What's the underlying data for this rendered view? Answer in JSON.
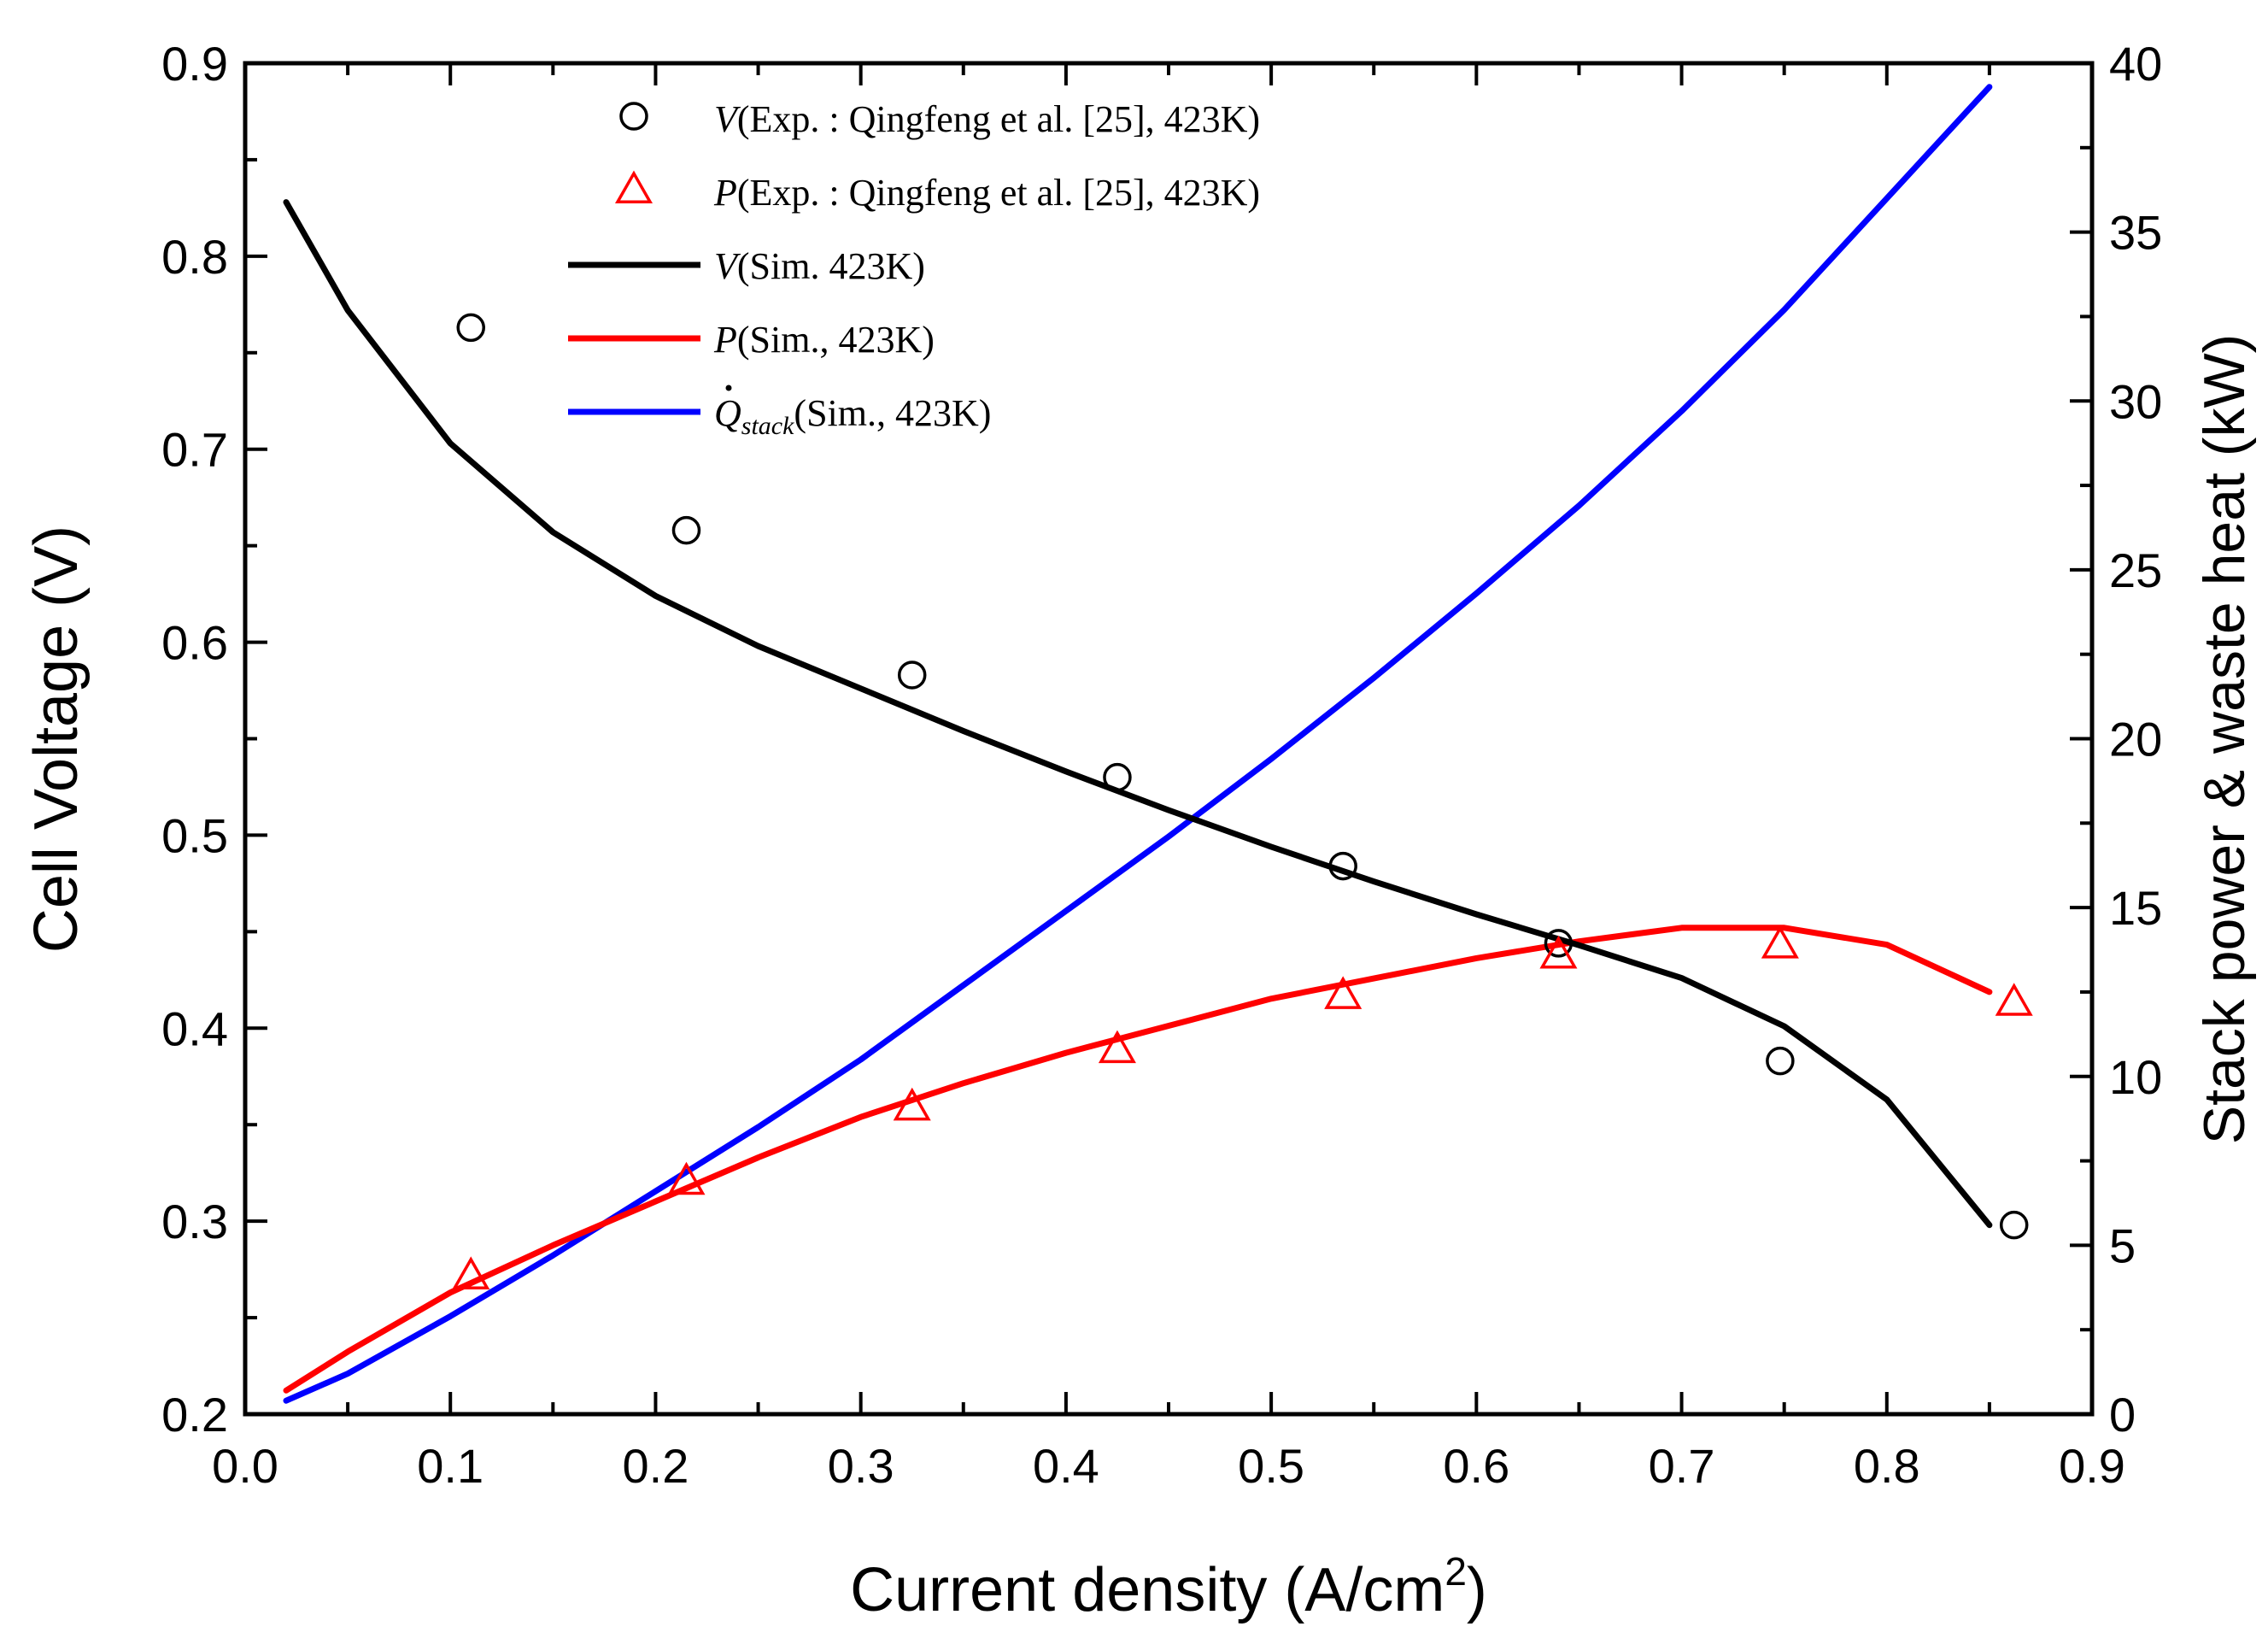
{
  "chart_data": {
    "type": "line",
    "xlabel": "Current density (A/cm",
    "xlabel_sup": "2",
    "xlabel_end": ")",
    "ylabel_left": "Cell Voltage (V)",
    "ylabel_right": "Stack power & waste heat (kW)",
    "xlim": [
      0.0,
      0.9
    ],
    "ylim_left": [
      0.2,
      0.9
    ],
    "ylim_right": [
      0,
      40
    ],
    "x_ticks": [
      "0.0",
      "0.1",
      "0.2",
      "0.3",
      "0.4",
      "0.5",
      "0.6",
      "0.7",
      "0.8",
      "0.9"
    ],
    "y_left_ticks": [
      "0.2",
      "0.3",
      "0.4",
      "0.5",
      "0.6",
      "0.7",
      "0.8",
      "0.9"
    ],
    "y_right_ticks": [
      "0",
      "5",
      "10",
      "15",
      "20",
      "25",
      "30",
      "35",
      "40"
    ],
    "legend_position": "top-center",
    "series": [
      {
        "name": "V_exp",
        "kind": "markers",
        "marker": "circle",
        "axis": "left",
        "color": "#000000",
        "legend_var": "V",
        "legend_label": "(Exp. : Qingfeng et al. [25], 423K)",
        "x": [
          0.11,
          0.215,
          0.325,
          0.425,
          0.535,
          0.64,
          0.748,
          0.862
        ],
        "y": [
          0.763,
          0.658,
          0.583,
          0.53,
          0.484,
          0.444,
          0.383,
          0.298
        ]
      },
      {
        "name": "P_exp",
        "kind": "markers",
        "marker": "triangle",
        "axis": "right",
        "color": "#ff0000",
        "legend_var": "P",
        "legend_label": "(Exp. : Qingfeng et al. [25], 423K)",
        "x": [
          0.11,
          0.215,
          0.325,
          0.425,
          0.535,
          0.64,
          0.748,
          0.862
        ],
        "y": [
          4.1,
          6.9,
          9.1,
          10.8,
          12.4,
          13.6,
          13.9,
          12.2
        ]
      },
      {
        "name": "V_sim",
        "kind": "line",
        "axis": "left",
        "color": "#000000",
        "legend_var": "V",
        "legend_label": "(Sim. 423K)",
        "x": [
          0.02,
          0.05,
          0.1,
          0.15,
          0.2,
          0.25,
          0.3,
          0.35,
          0.4,
          0.45,
          0.5,
          0.55,
          0.6,
          0.65,
          0.7,
          0.75,
          0.8,
          0.85
        ],
        "y": [
          0.828,
          0.772,
          0.703,
          0.657,
          0.624,
          0.598,
          0.576,
          0.554,
          0.533,
          0.513,
          0.494,
          0.476,
          0.459,
          0.443,
          0.426,
          0.401,
          0.363,
          0.298
        ]
      },
      {
        "name": "P_sim",
        "kind": "line",
        "axis": "right",
        "color": "#ff0000",
        "legend_var": "P",
        "legend_label": "(Sim., 423K)",
        "x": [
          0.02,
          0.05,
          0.1,
          0.15,
          0.2,
          0.25,
          0.3,
          0.35,
          0.4,
          0.45,
          0.5,
          0.55,
          0.6,
          0.65,
          0.7,
          0.75,
          0.8,
          0.85
        ],
        "y": [
          0.7,
          1.85,
          3.6,
          5.0,
          6.3,
          7.6,
          8.8,
          9.8,
          10.7,
          11.5,
          12.3,
          12.9,
          13.5,
          14.0,
          14.4,
          14.4,
          13.9,
          12.5
        ]
      },
      {
        "name": "Q_stack_sim",
        "kind": "line",
        "axis": "right",
        "color": "#0000ff",
        "legend_var": "Q",
        "legend_sub": "stack",
        "legend_label": "(Sim., 423K)",
        "x": [
          0.02,
          0.05,
          0.1,
          0.15,
          0.2,
          0.25,
          0.3,
          0.35,
          0.4,
          0.45,
          0.5,
          0.55,
          0.6,
          0.65,
          0.7,
          0.75,
          0.8,
          0.85
        ],
        "y": [
          0.4,
          1.2,
          2.9,
          4.7,
          6.6,
          8.5,
          10.5,
          12.7,
          14.9,
          17.1,
          19.4,
          21.8,
          24.3,
          26.9,
          29.7,
          32.7,
          36.0,
          39.3
        ]
      }
    ]
  }
}
